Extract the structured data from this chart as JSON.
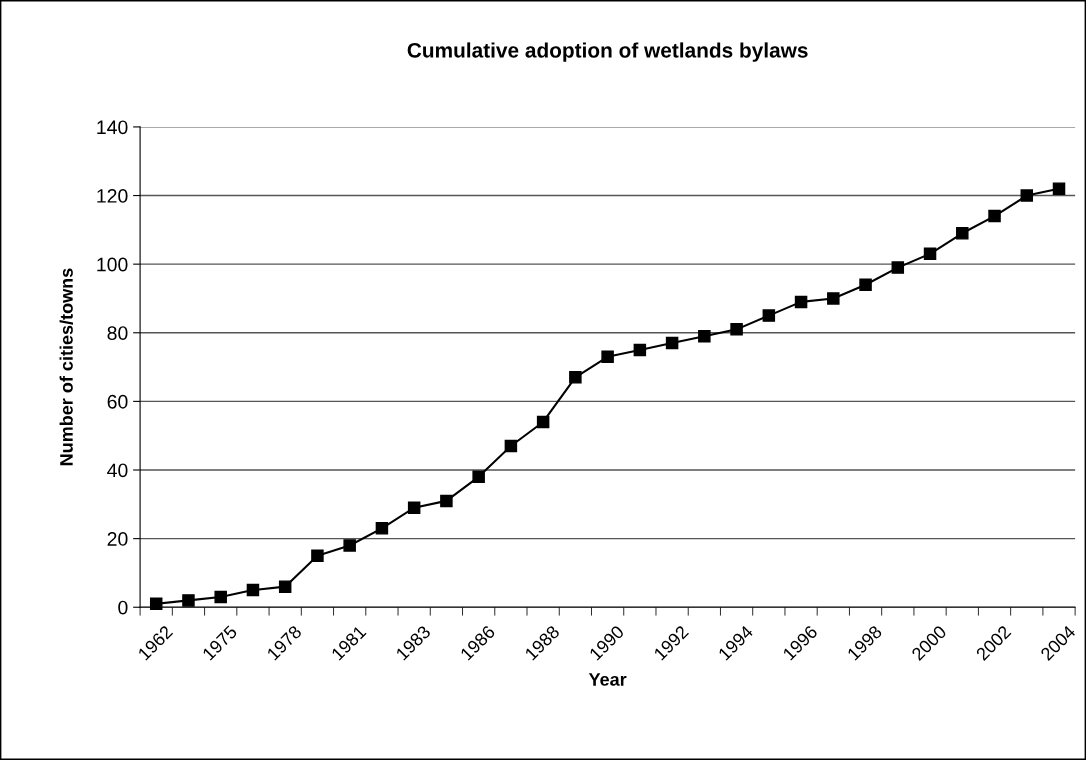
{
  "chart_data": {
    "type": "line",
    "title": "Cumulative adoption of wetlands bylaws",
    "xlabel": "Year",
    "ylabel": "Number of cities/towns",
    "categories": [
      "1962",
      null,
      "1975",
      null,
      "1978",
      null,
      "1981",
      null,
      "1983",
      null,
      "1986",
      null,
      "1988",
      null,
      "1990",
      null,
      "1992",
      null,
      "1994",
      null,
      "1996",
      null,
      "1998",
      null,
      "2000",
      null,
      "2002",
      null,
      "2004"
    ],
    "series": [
      {
        "color": "#000000",
        "values": [
          1,
          2,
          3,
          5,
          6,
          15,
          18,
          23,
          29,
          31,
          38,
          47,
          54,
          67,
          73,
          75,
          77,
          79,
          81,
          85,
          89,
          90,
          94,
          99,
          103,
          109,
          114,
          120,
          122
        ]
      }
    ],
    "ylim": [
      0,
      140
    ],
    "yticks": [
      0,
      20,
      40,
      60,
      80,
      100,
      120,
      140
    ],
    "grid": "y",
    "marker": "square",
    "line_style": "solid",
    "legend": false
  }
}
